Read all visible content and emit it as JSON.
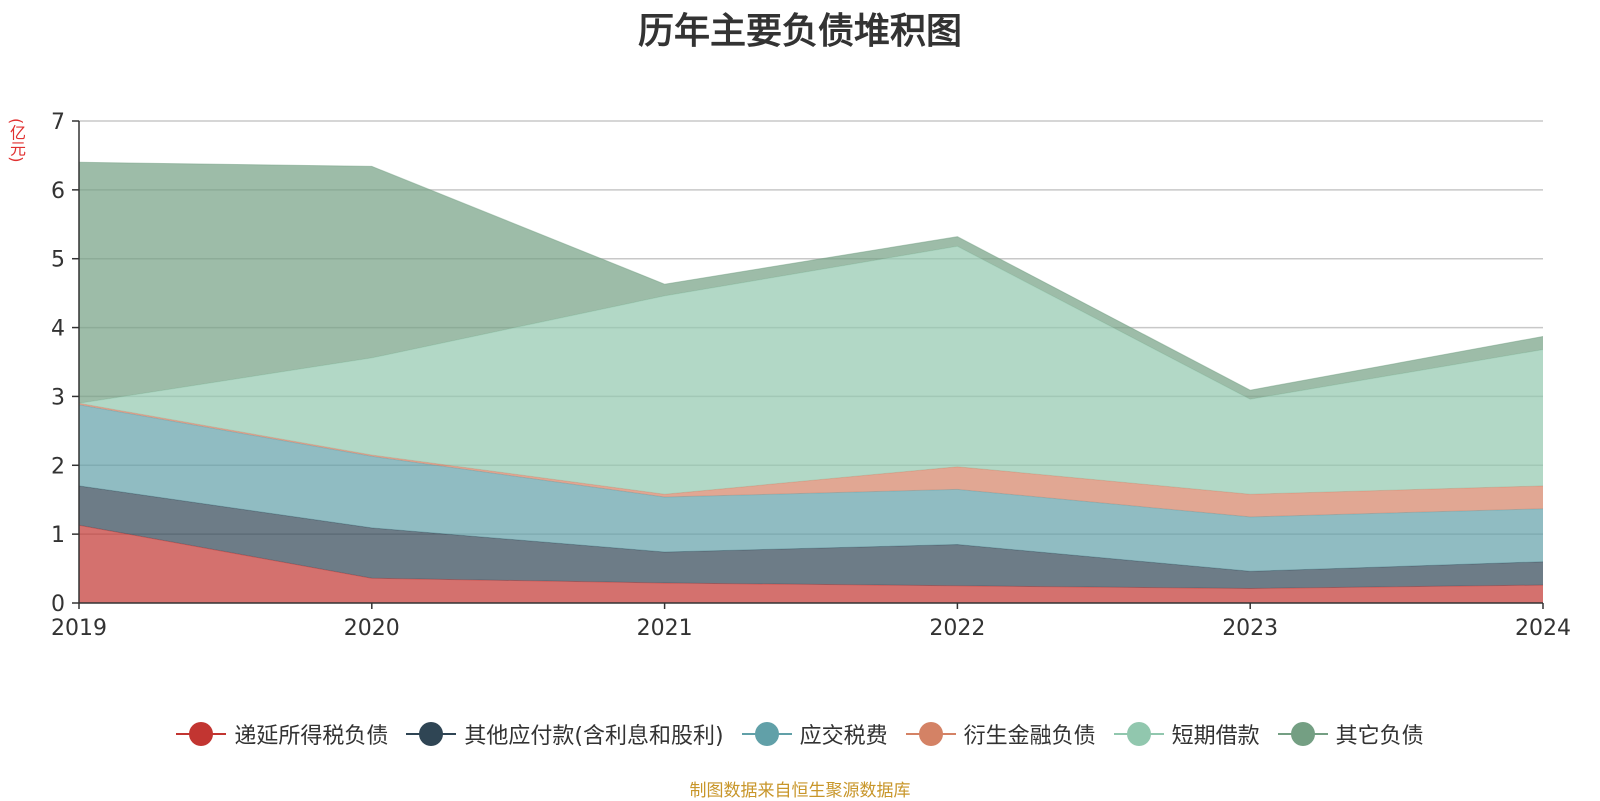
{
  "chart_data": {
    "type": "area",
    "stacked": true,
    "title": "历年主要负债堆积图",
    "ylabel": "(亿元)",
    "xlabel": "",
    "x": [
      "2019",
      "2020",
      "2021",
      "2022",
      "2023",
      "2024"
    ],
    "ylim": [
      0,
      7
    ],
    "yticks": [
      "0",
      "1",
      "2",
      "3",
      "4",
      "5",
      "6",
      "7"
    ],
    "grid": true,
    "legend_position": "bottom",
    "series": [
      {
        "name": "递延所得税负债",
        "color": "#c23531",
        "values": [
          1.13,
          0.36,
          0.29,
          0.25,
          0.21,
          0.26
        ]
      },
      {
        "name": "其他应付款(含利息和股利)",
        "color": "#2f4554",
        "values": [
          0.57,
          0.73,
          0.45,
          0.6,
          0.25,
          0.34
        ]
      },
      {
        "name": "应交税费",
        "color": "#61a0a8",
        "values": [
          1.18,
          1.04,
          0.8,
          0.8,
          0.79,
          0.77
        ]
      },
      {
        "name": "衍生金融负债",
        "color": "#d48265",
        "values": [
          0.02,
          0.02,
          0.04,
          0.33,
          0.33,
          0.33
        ]
      },
      {
        "name": "短期借款",
        "color": "#91c7ae",
        "values": [
          0.0,
          1.41,
          2.88,
          3.2,
          1.38,
          1.98
        ]
      },
      {
        "name": "其它负债",
        "color": "#749f83",
        "values": [
          3.5,
          2.78,
          0.17,
          0.14,
          0.13,
          0.19
        ]
      }
    ]
  },
  "source_note": "制图数据来自恒生聚源数据库"
}
